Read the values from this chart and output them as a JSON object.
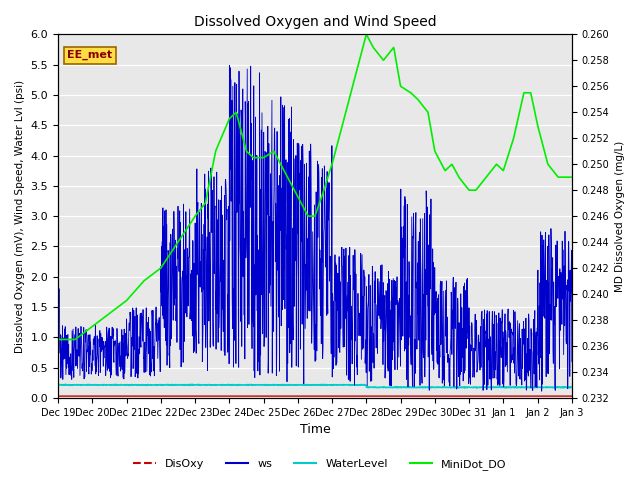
{
  "title": "Dissolved Oxygen and Wind Speed",
  "ylabel_left": "Dissolved Oxygen (mV), Wind Speed, Water Lvl (psi)",
  "ylabel_right": "MD Dissolved Oxygen (mg/L)",
  "xlabel": "Time",
  "ylim_left": [
    0.0,
    6.0
  ],
  "ylim_right": [
    0.232,
    0.26
  ],
  "yticks_left": [
    0.0,
    0.5,
    1.0,
    1.5,
    2.0,
    2.5,
    3.0,
    3.5,
    4.0,
    4.5,
    5.0,
    5.5,
    6.0
  ],
  "yticks_right": [
    0.232,
    0.234,
    0.236,
    0.238,
    0.24,
    0.242,
    0.244,
    0.246,
    0.248,
    0.25,
    0.252,
    0.254,
    0.256,
    0.258,
    0.26
  ],
  "xtick_labels": [
    "Dec 19",
    "Dec 20",
    "Dec 21",
    "Dec 22",
    "Dec 23",
    "Dec 24",
    "Dec 25",
    "Dec 26",
    "Dec 27",
    "Dec 28",
    "Dec 29",
    "Dec 30",
    "Dec 31",
    "Jan 1",
    "Jan 2",
    "Jan 3"
  ],
  "disoxy_color": "#cc0000",
  "ws_color": "#0000cc",
  "waterlevel_color": "#00cccc",
  "minidot_color": "#00ee00",
  "legend_items": [
    "DisOxy",
    "ws",
    "WaterLevel",
    "MiniDot_DO"
  ],
  "legend_colors": [
    "#cc0000",
    "#0000cc",
    "#00cccc",
    "#00ee00"
  ],
  "annotation_text": "EE_met",
  "annotation_box_color": "#ffdd44",
  "plot_bg_color": "#e8e8e8",
  "grid_color": "#ffffff"
}
